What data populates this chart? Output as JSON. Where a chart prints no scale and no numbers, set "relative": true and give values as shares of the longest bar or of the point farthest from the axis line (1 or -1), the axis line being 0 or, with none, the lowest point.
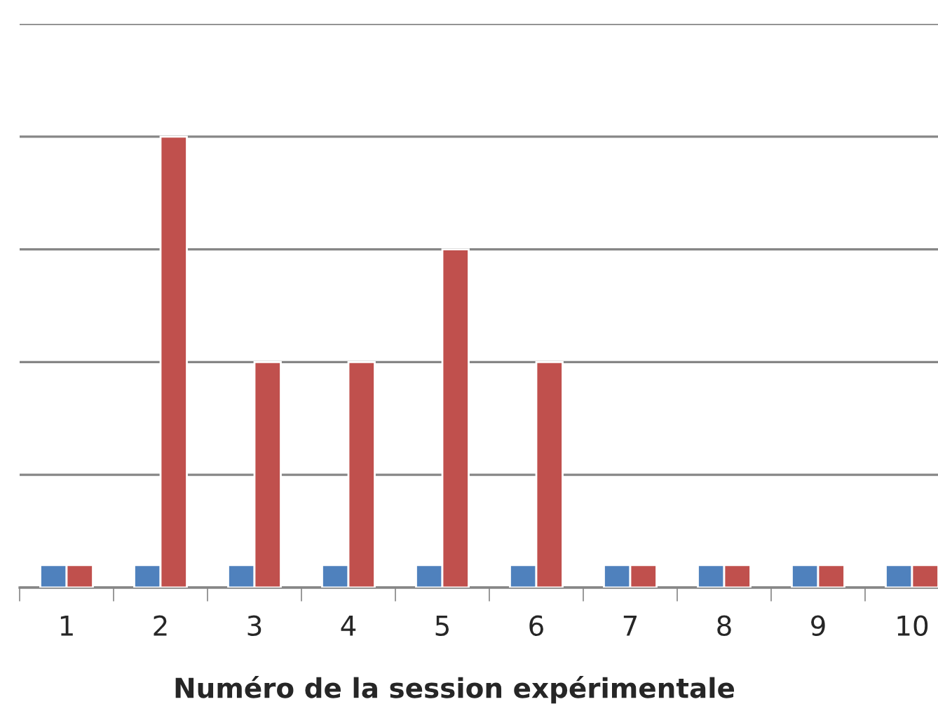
{
  "chart_data": {
    "type": "bar",
    "xlabel": "Numéro de la session expérimentale",
    "relative": true,
    "grid": "y",
    "legend": false,
    "categories": [
      "1",
      "2",
      "3",
      "4",
      "5",
      "6",
      "7",
      "8",
      "9",
      "10"
    ],
    "series": [
      {
        "color": "#4f81bd",
        "values": [
          0.05,
          0.05,
          0.05,
          0.05,
          0.05,
          0.05,
          0.05,
          0.05,
          0.05,
          0.05
        ]
      },
      {
        "color": "#c0504d",
        "values": [
          0.05,
          1,
          0.5,
          0.5,
          0.75,
          0.5,
          0.05,
          0.05,
          0.05,
          0.05
        ]
      }
    ]
  }
}
